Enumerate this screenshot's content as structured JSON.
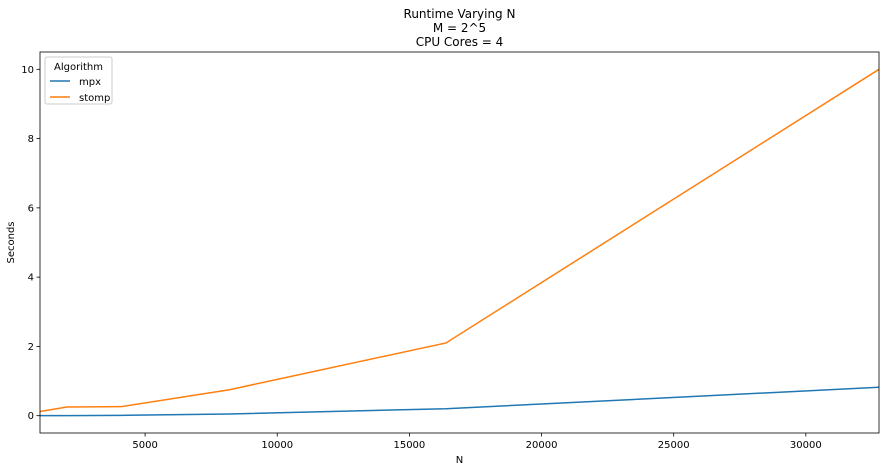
{
  "chart_data": {
    "type": "line",
    "title_lines": [
      "Runtime Varying N",
      "M = 2^5",
      "CPU Cores = 4"
    ],
    "xlabel": "N",
    "ylabel": "Seconds",
    "xlim": [
      1024,
      32768
    ],
    "ylim": [
      -0.5,
      10.5
    ],
    "xticks": [
      5000,
      10000,
      15000,
      20000,
      25000,
      30000
    ],
    "yticks": [
      0,
      2,
      4,
      6,
      8,
      10
    ],
    "grid": false,
    "legend": {
      "title": "Algorithm",
      "placement": "top-left"
    },
    "x": [
      1024,
      2048,
      4096,
      8192,
      16384,
      32768
    ],
    "series": [
      {
        "name": "mpx",
        "color": "#1f77b4",
        "values": [
          0.0,
          0.0,
          0.01,
          0.05,
          0.2,
          0.82
        ]
      },
      {
        "name": "stomp",
        "color": "#ff7f0e",
        "values": [
          0.12,
          0.25,
          0.26,
          0.75,
          2.1,
          10.0
        ]
      }
    ]
  }
}
